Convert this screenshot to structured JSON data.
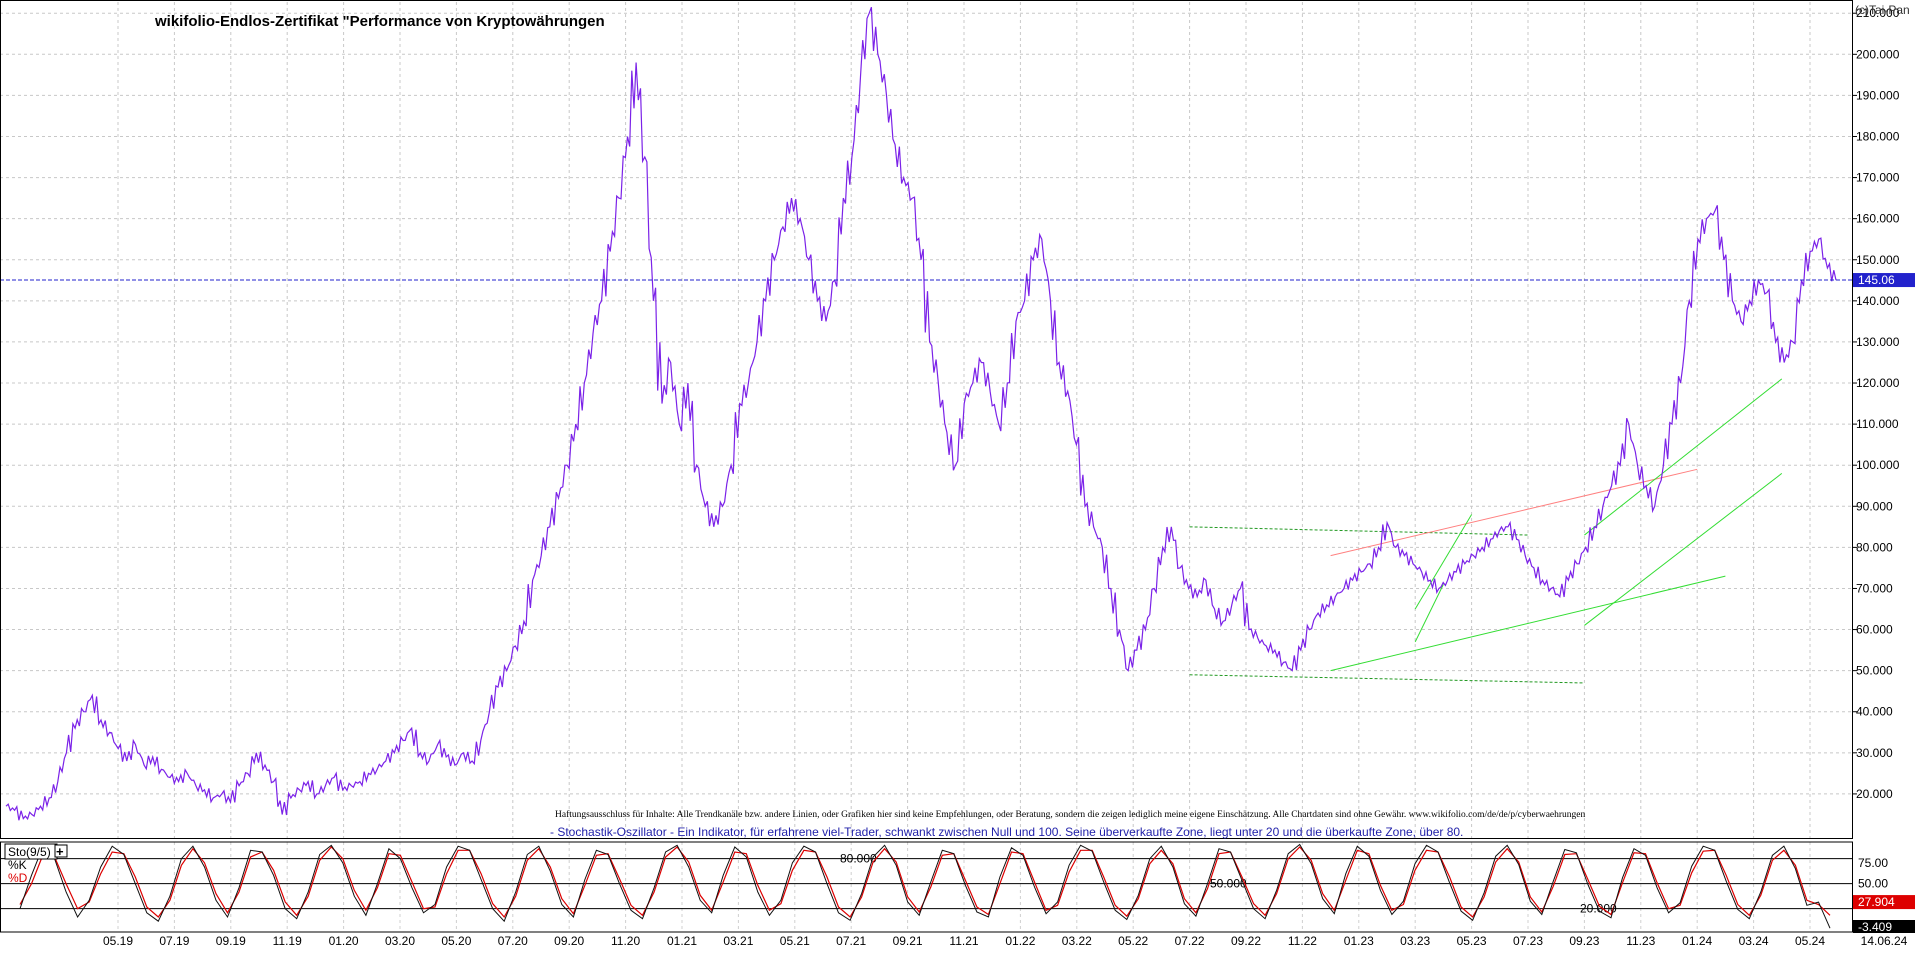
{
  "chart_data": [
    {
      "type": "line",
      "title": "wikifolio-Endlos-Zertifikat \"Performance von Kryptowährungen",
      "watermark": "(c)Tai-Pan",
      "disclaimer": "Haftungsausschluss für Inhalte: Alle Trendkanäle bzw. andere Linien, oder Grafiken hier sind keine Empfehlungen, oder Beratung, sondern die zeigen lediglich meine eigene Einschätzung. Alle Chartdaten sind ohne Gewähr. www.wikifolio.com/de/de/p/cyberwaehrungen",
      "indicator_note": "- Stochastik-Oszillator - Ein Indikator, für erfahrene viel-Trader, schwankt zwischen Null und 100. Seine überverkaufte Zone, liegt unter 20 und die überkaufte Zone, über 80.",
      "ylim": [
        10,
        212
      ],
      "yticks": [
        "20.000",
        "30.000",
        "40.000",
        "50.000",
        "60.000",
        "70.000",
        "80.000",
        "90.000",
        "100.000",
        "110.000",
        "120.000",
        "130.000",
        "140.000",
        "150.000",
        "160.000",
        "170.000",
        "180.000",
        "190.000",
        "200.000",
        "210.000"
      ],
      "last_value_label": "145.06",
      "last_value": 145.06,
      "xticks": [
        "05.19",
        "07.19",
        "09.19",
        "11.19",
        "01.20",
        "03.20",
        "05.20",
        "07.20",
        "09.20",
        "11.20",
        "01.21",
        "03.21",
        "05.21",
        "07.21",
        "09.21",
        "11.21",
        "01.22",
        "03.22",
        "05.22",
        "07.22",
        "09.22",
        "11.22",
        "01.23",
        "03.23",
        "05.23",
        "07.23",
        "09.23",
        "11.23",
        "01.24",
        "03.24",
        "05.24"
      ],
      "end_date_label": "14.06.24",
      "grid": true,
      "colors": {
        "price": "#7b22e8",
        "last_value_bg": "#2222cc",
        "trend_green": "#33dd33",
        "trend_red": "#ff8080",
        "dashed_green": "#229922",
        "note_blue": "#2222aa"
      },
      "series": [
        {
          "values": [
            17,
            16,
            14,
            15,
            17,
            19,
            23,
            30,
            36,
            40,
            44,
            38,
            35,
            31,
            28,
            32,
            27,
            29,
            26,
            24,
            23,
            25,
            22,
            21,
            19,
            20,
            18,
            22,
            25,
            30,
            27,
            23,
            15,
            19,
            21,
            23,
            20,
            22,
            24,
            21,
            22,
            23,
            25,
            26,
            28,
            30,
            33,
            36,
            30,
            28,
            32,
            29,
            27,
            30,
            28,
            33,
            40,
            46,
            50,
            56,
            62,
            72,
            78,
            85,
            92,
            100,
            110,
            120,
            132,
            140,
            152,
            165,
            180,
            198,
            175,
            140,
            115,
            125,
            110,
            120,
            100,
            90,
            85,
            90,
            100,
            115,
            120,
            130,
            140,
            150,
            158,
            165,
            160,
            150,
            140,
            135,
            145,
            165,
            175,
            195,
            210,
            200,
            190,
            178,
            170,
            165,
            150,
            130,
            120,
            108,
            100,
            115,
            120,
            125,
            118,
            110,
            120,
            135,
            140,
            150,
            155,
            140,
            125,
            118,
            105,
            90,
            85,
            80,
            70,
            60,
            50,
            55,
            60,
            70,
            80,
            85,
            75,
            70,
            68,
            72,
            65,
            62,
            66,
            70,
            60,
            58,
            56,
            55,
            52,
            50,
            55,
            60,
            64,
            66,
            68,
            70,
            72,
            74,
            76,
            80,
            86,
            80,
            78,
            76,
            74,
            72,
            70,
            72,
            74,
            76,
            78,
            80,
            82,
            84,
            85,
            82,
            78,
            75,
            72,
            70,
            68,
            72,
            76,
            80,
            85,
            90,
            95,
            100,
            110,
            100,
            95,
            90,
            100,
            110,
            120,
            140,
            155,
            160,
            162,
            150,
            140,
            135,
            140,
            145,
            142,
            130,
            125,
            130,
            145,
            152,
            155,
            148,
            145.06
          ]
        }
      ],
      "trendlines": [
        {
          "color": "green",
          "style": "dashed",
          "from": [
            "07.22",
            85
          ],
          "to": [
            "07.23",
            83
          ]
        },
        {
          "color": "green",
          "style": "dashed",
          "from": [
            "07.22",
            49
          ],
          "to": [
            "09.23",
            47
          ]
        },
        {
          "color": "green",
          "style": "solid",
          "from": [
            "12.22",
            50
          ],
          "to": [
            "02.24",
            73
          ]
        },
        {
          "color": "red",
          "style": "solid",
          "from": [
            "12.22",
            78
          ],
          "to": [
            "01.24",
            99
          ]
        },
        {
          "color": "green",
          "style": "solid",
          "from": [
            "03.23",
            57
          ],
          "to": [
            "04.23",
            71
          ]
        },
        {
          "color": "green",
          "style": "solid",
          "from": [
            "03.23",
            65
          ],
          "to": [
            "05.23",
            88
          ]
        },
        {
          "color": "green",
          "style": "solid",
          "from": [
            "09.23",
            83
          ],
          "to": [
            "04.24",
            121
          ]
        },
        {
          "color": "green",
          "style": "solid",
          "from": [
            "09.23",
            61
          ],
          "to": [
            "04.24",
            98
          ]
        }
      ]
    },
    {
      "type": "line",
      "title": "Sto(9/5)",
      "ylim": [
        -8,
        100
      ],
      "levels": [
        {
          "value": 80,
          "label": "80.000"
        },
        {
          "value": 50,
          "label": "50.000"
        },
        {
          "value": 20,
          "label": "20.000"
        }
      ],
      "yticks": [
        "75.00",
        "50.00",
        "25.00"
      ],
      "last_value_label": "27.904",
      "bottom_value_label": "-3.409",
      "legend": [
        "%K",
        "%D"
      ],
      "colors": {
        "K": "#111111",
        "D": "#dd0000",
        "last_value_bg": "#dd0000"
      },
      "series": [
        {
          "name": "%K",
          "values": [
            20,
            60,
            95,
            80,
            40,
            10,
            30,
            70,
            95,
            85,
            50,
            15,
            5,
            35,
            80,
            95,
            70,
            30,
            10,
            45,
            90,
            88,
            60,
            20,
            8,
            40,
            85,
            96,
            75,
            35,
            12,
            50,
            92,
            80,
            45,
            15,
            25,
            70,
            95,
            90,
            55,
            20,
            5,
            40,
            85,
            95,
            65,
            25,
            10,
            55,
            90,
            85,
            50,
            18,
            8,
            45,
            88,
            96,
            70,
            30,
            15,
            60,
            94,
            82,
            40,
            12,
            30,
            75,
            95,
            88,
            50,
            15,
            6,
            38,
            82,
            96,
            72,
            28,
            12,
            52,
            90,
            86,
            48,
            16,
            10,
            58,
            93,
            84,
            46,
            14,
            28,
            72,
            96,
            89,
            52,
            18,
            7,
            36,
            80,
            95,
            70,
            26,
            11,
            50,
            92,
            88,
            54,
            20,
            8,
            42,
            86,
            97,
            74,
            32,
            14,
            62,
            95,
            83,
            42,
            13,
            29,
            74,
            96,
            88,
            51,
            17,
            6,
            39,
            83,
            96,
            73,
            29,
            13,
            53,
            91,
            87,
            49,
            17,
            9,
            57,
            92,
            84,
            45,
            15,
            27,
            71,
            95,
            90,
            53,
            19,
            8,
            40,
            84,
            95,
            68,
            24,
            27.904,
            -3.409
          ]
        },
        {
          "name": "%D",
          "values": [
            25,
            50,
            85,
            82,
            50,
            20,
            28,
            62,
            88,
            86,
            58,
            22,
            10,
            30,
            72,
            92,
            75,
            38,
            15,
            40,
            82,
            88,
            66,
            28,
            12,
            35,
            78,
            94,
            80,
            42,
            18,
            45,
            86,
            84,
            52,
            20,
            22,
            62,
            90,
            90,
            62,
            26,
            10,
            35,
            78,
            92,
            70,
            32,
            14,
            48,
            84,
            86,
            56,
            24,
            12,
            40,
            82,
            94,
            76,
            36,
            18,
            52,
            88,
            86,
            48,
            18,
            26,
            66,
            90,
            88,
            58,
            22,
            10,
            34,
            76,
            92,
            76,
            34,
            16,
            46,
            84,
            86,
            54,
            22,
            13,
            50,
            88,
            86,
            52,
            18,
            24,
            64,
            90,
            90,
            58,
            24,
            11,
            32,
            74,
            90,
            74,
            32,
            15,
            44,
            86,
            88,
            58,
            26,
            12,
            38,
            80,
            94,
            78,
            38,
            18,
            54,
            90,
            86,
            48,
            18,
            25,
            66,
            90,
            88,
            58,
            22,
            10,
            34,
            76,
            92,
            76,
            34,
            16,
            47,
            85,
            86,
            55,
            23,
            13,
            51,
            87,
            86,
            51,
            20,
            24,
            63,
            89,
            90,
            60,
            25,
            12,
            36,
            78,
            90,
            72,
            30,
            25,
            12
          ]
        }
      ]
    }
  ]
}
